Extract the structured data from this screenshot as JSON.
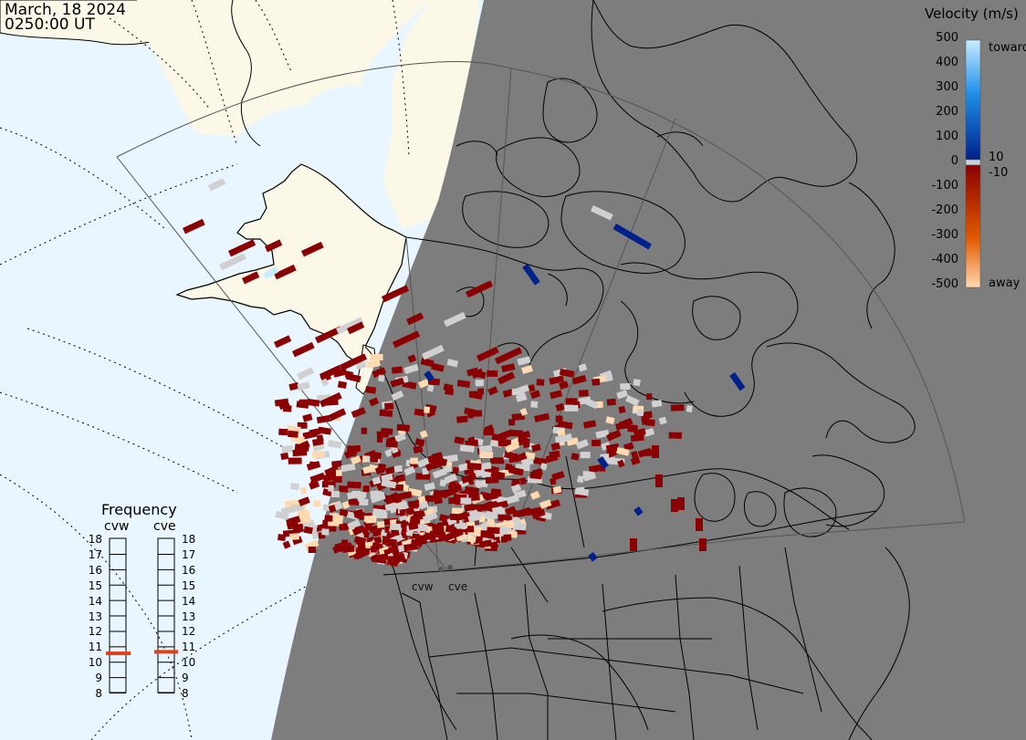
{
  "header": {
    "date": "March, 18 2024",
    "time": "0250:00 UT"
  },
  "colorbar": {
    "title": "Velocity (m/s)",
    "toward_label": "toward",
    "away_label": "away",
    "ticks": [
      "500",
      "400",
      "300",
      "200",
      "100",
      "0",
      "-100",
      "-200",
      "-300",
      "-400",
      "-500"
    ],
    "near_zero_labels": [
      "10",
      "-10"
    ],
    "colors": {
      "toward_light": "#c8ecff",
      "toward_mid": "#1e8fe8",
      "toward_dark": "#00208c",
      "zero_gray": "#d0d0d0",
      "away_dark": "#8b0000",
      "away_mid": "#e25a00",
      "away_light": "#ffd9b0"
    }
  },
  "frequency": {
    "title": "Frequency",
    "radars": [
      {
        "name": "cvw",
        "frequency_mhz": 10.6
      },
      {
        "name": "cve",
        "frequency_mhz": 10.7
      }
    ],
    "ticks": [
      "18",
      "17",
      "16",
      "15",
      "14",
      "13",
      "12",
      "11",
      "10",
      "9",
      "8"
    ]
  },
  "sites": [
    {
      "label": "cvw"
    },
    {
      "label": "cve"
    }
  ],
  "map": {
    "ocean_color": "#e9f6ff",
    "land_day_color": "#fbf8e8",
    "night_color": "#7d7d7d",
    "border_color": "#000000",
    "fov_color": "#555555"
  }
}
